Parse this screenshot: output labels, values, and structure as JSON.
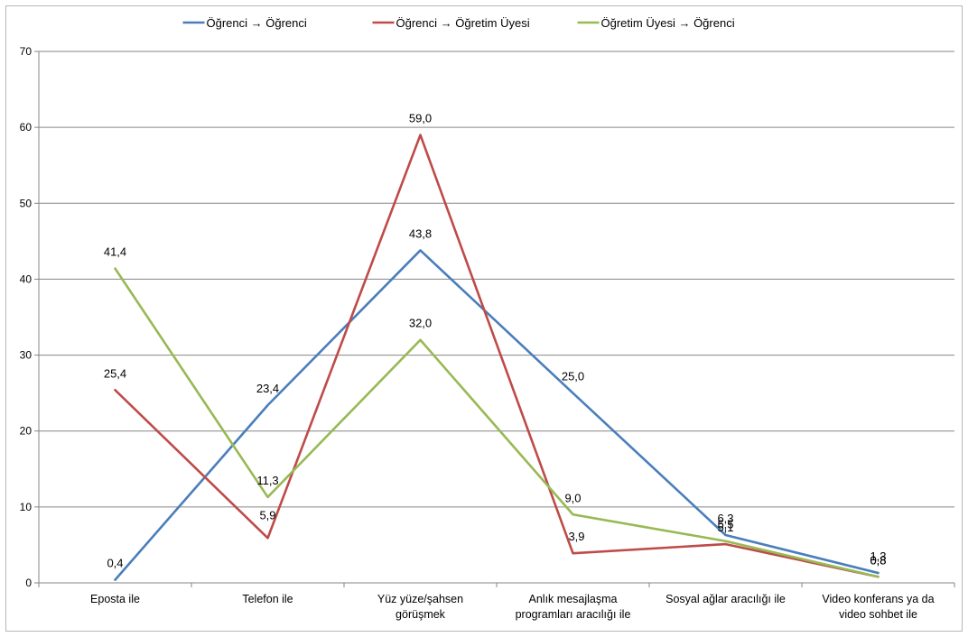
{
  "chart_data": {
    "type": "line",
    "categories": [
      [
        "Eposta ile"
      ],
      [
        "Telefon ile"
      ],
      [
        "Yüz yüze/şahsen",
        "görüşmek"
      ],
      [
        "Anlık mesajlaşma",
        "programları aracılığı ile"
      ],
      [
        "Sosyal ağlar aracılığı ile"
      ],
      [
        "Video konferans ya da",
        "video sohbet ile"
      ]
    ],
    "series": [
      {
        "name": "Öğrenci → Öğrenci",
        "color": "#4a7ebb",
        "values": [
          0.4,
          23.4,
          43.8,
          25.0,
          6.3,
          1.3
        ],
        "labels": [
          "0,4",
          "23,4",
          "43,8",
          "25,0",
          "6,3",
          "1,3"
        ]
      },
      {
        "name": "Öğrenci → Öğretim Üyesi",
        "color": "#be4b48",
        "values": [
          25.4,
          5.9,
          59.0,
          3.9,
          5.1,
          0.8
        ],
        "labels": [
          "25,4",
          "5,9",
          "59,0",
          "3,9",
          "5,1",
          "0,8"
        ]
      },
      {
        "name": "Öğretim Üyesi → Öğrenci",
        "color": "#98b954",
        "values": [
          41.4,
          11.3,
          32.0,
          9.0,
          5.5,
          0.8
        ],
        "labels": [
          "41,4",
          "11,3",
          "32,0",
          "9,0",
          "5,5",
          "0,8"
        ]
      }
    ],
    "ylim": [
      0,
      70
    ],
    "yticks": [
      0,
      10,
      20,
      30,
      40,
      50,
      60,
      70
    ],
    "grid": true,
    "legend": "top"
  }
}
